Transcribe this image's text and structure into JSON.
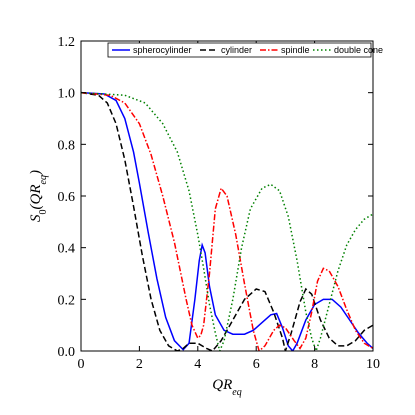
{
  "chart_data": {
    "type": "line",
    "xlabel_main": "QR",
    "xlabel_sub": "eq",
    "ylabel_main": "S",
    "ylabel_sub0": "0",
    "ylabel_open": "(QR",
    "ylabel_sub1": "eq",
    "ylabel_close": ")",
    "xlim": [
      0,
      10
    ],
    "ylim": [
      0,
      1.2
    ],
    "xticks": [
      "0",
      "2",
      "4",
      "6",
      "8",
      "10"
    ],
    "yticks": [
      "0.0",
      "0.2",
      "0.4",
      "0.6",
      "0.8",
      "1.0",
      "1.2"
    ],
    "grid": false,
    "legend_position": "top",
    "series": [
      {
        "name": "spherocylinder",
        "color": "#0000ff",
        "dash": "solid",
        "points": [
          [
            0,
            1
          ],
          [
            0.8,
            0.995
          ],
          [
            1.2,
            0.97
          ],
          [
            1.5,
            0.9
          ],
          [
            1.8,
            0.77
          ],
          [
            2.0,
            0.65
          ],
          [
            2.3,
            0.46
          ],
          [
            2.6,
            0.28
          ],
          [
            2.9,
            0.13
          ],
          [
            3.2,
            0.04
          ],
          [
            3.5,
            0.005
          ],
          [
            3.7,
            0.03
          ],
          [
            3.9,
            0.2
          ],
          [
            4.05,
            0.35
          ],
          [
            4.15,
            0.41
          ],
          [
            4.25,
            0.38
          ],
          [
            4.4,
            0.25
          ],
          [
            4.6,
            0.14
          ],
          [
            4.9,
            0.08
          ],
          [
            5.2,
            0.065
          ],
          [
            5.6,
            0.065
          ],
          [
            5.9,
            0.08
          ],
          [
            6.2,
            0.11
          ],
          [
            6.5,
            0.14
          ],
          [
            6.7,
            0.145
          ],
          [
            6.9,
            0.09
          ],
          [
            7.1,
            0.02
          ],
          [
            7.25,
            0.0
          ],
          [
            7.4,
            0.03
          ],
          [
            7.7,
            0.12
          ],
          [
            8.0,
            0.18
          ],
          [
            8.3,
            0.2
          ],
          [
            8.6,
            0.2
          ],
          [
            8.9,
            0.17
          ],
          [
            9.2,
            0.12
          ],
          [
            9.5,
            0.07
          ],
          [
            9.8,
            0.03
          ],
          [
            10,
            0.01
          ]
        ]
      },
      {
        "name": "cylinder",
        "color": "#000000",
        "dash": "6,3",
        "points": [
          [
            0,
            1
          ],
          [
            0.6,
            0.99
          ],
          [
            0.9,
            0.96
          ],
          [
            1.2,
            0.88
          ],
          [
            1.5,
            0.74
          ],
          [
            1.8,
            0.56
          ],
          [
            2.1,
            0.37
          ],
          [
            2.4,
            0.2
          ],
          [
            2.7,
            0.08
          ],
          [
            3.0,
            0.02
          ],
          [
            3.3,
            0.0
          ],
          [
            3.5,
            0.01
          ],
          [
            3.7,
            0.03
          ],
          [
            4.0,
            0.03
          ],
          [
            4.3,
            0.01
          ],
          [
            4.5,
            0.0
          ],
          [
            4.8,
            0.04
          ],
          [
            5.2,
            0.12
          ],
          [
            5.6,
            0.2
          ],
          [
            6.0,
            0.24
          ],
          [
            6.3,
            0.23
          ],
          [
            6.6,
            0.15
          ],
          [
            6.9,
            0.05
          ],
          [
            7.0,
            0.0
          ],
          [
            7.2,
            0.07
          ],
          [
            7.5,
            0.19
          ],
          [
            7.7,
            0.24
          ],
          [
            7.9,
            0.22
          ],
          [
            8.2,
            0.12
          ],
          [
            8.5,
            0.05
          ],
          [
            8.8,
            0.02
          ],
          [
            9.1,
            0.02
          ],
          [
            9.4,
            0.04
          ],
          [
            9.7,
            0.08
          ],
          [
            10,
            0.1
          ]
        ]
      },
      {
        "name": "spindle",
        "color": "#ff0000",
        "dash": "6,2,1.5,2",
        "points": [
          [
            0,
            1
          ],
          [
            1.0,
            0.99
          ],
          [
            1.5,
            0.96
          ],
          [
            2.0,
            0.88
          ],
          [
            2.4,
            0.76
          ],
          [
            2.8,
            0.6
          ],
          [
            3.2,
            0.42
          ],
          [
            3.6,
            0.2
          ],
          [
            3.8,
            0.1
          ],
          [
            4.0,
            0.05
          ],
          [
            4.1,
            0.06
          ],
          [
            4.2,
            0.1
          ],
          [
            4.4,
            0.3
          ],
          [
            4.6,
            0.55
          ],
          [
            4.8,
            0.63
          ],
          [
            5.0,
            0.6
          ],
          [
            5.3,
            0.45
          ],
          [
            5.6,
            0.26
          ],
          [
            5.9,
            0.08
          ],
          [
            6.1,
            0.0
          ],
          [
            6.3,
            0.02
          ],
          [
            6.6,
            0.08
          ],
          [
            6.8,
            0.1
          ],
          [
            7.0,
            0.09
          ],
          [
            7.3,
            0.04
          ],
          [
            7.5,
            0.01
          ],
          [
            7.7,
            0.05
          ],
          [
            7.9,
            0.15
          ],
          [
            8.1,
            0.27
          ],
          [
            8.3,
            0.32
          ],
          [
            8.5,
            0.31
          ],
          [
            8.8,
            0.25
          ],
          [
            9.1,
            0.16
          ],
          [
            9.4,
            0.08
          ],
          [
            9.7,
            0.03
          ],
          [
            10,
            0.01
          ]
        ]
      },
      {
        "name": "double cone",
        "color": "#008000",
        "dash": "1.5,2.5",
        "points": [
          [
            0,
            1
          ],
          [
            1.5,
            0.99
          ],
          [
            2.2,
            0.96
          ],
          [
            2.8,
            0.88
          ],
          [
            3.3,
            0.77
          ],
          [
            3.7,
            0.62
          ],
          [
            4.0,
            0.45
          ],
          [
            4.2,
            0.32
          ],
          [
            4.4,
            0.18
          ],
          [
            4.6,
            0.07
          ],
          [
            4.75,
            0.0
          ],
          [
            4.9,
            0.04
          ],
          [
            5.2,
            0.2
          ],
          [
            5.5,
            0.4
          ],
          [
            5.8,
            0.55
          ],
          [
            6.2,
            0.63
          ],
          [
            6.5,
            0.645
          ],
          [
            6.8,
            0.62
          ],
          [
            7.1,
            0.52
          ],
          [
            7.4,
            0.35
          ],
          [
            7.7,
            0.15
          ],
          [
            7.9,
            0.05
          ],
          [
            8.05,
            0.0
          ],
          [
            8.2,
            0.05
          ],
          [
            8.5,
            0.18
          ],
          [
            8.8,
            0.31
          ],
          [
            9.1,
            0.41
          ],
          [
            9.4,
            0.47
          ],
          [
            9.7,
            0.51
          ],
          [
            10,
            0.53
          ]
        ]
      }
    ]
  }
}
